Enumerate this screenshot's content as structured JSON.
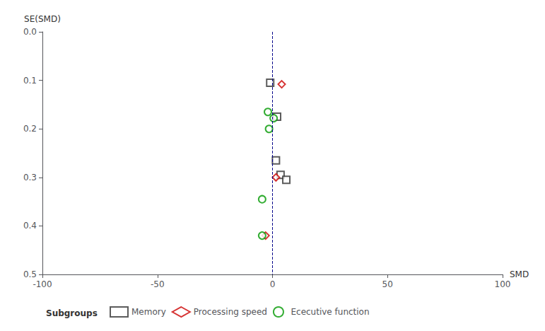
{
  "chart_data": {
    "type": "scatter",
    "xlabel": "SMD",
    "ylabel": "SE(SMD)",
    "xlim": [
      -100,
      100
    ],
    "ylim": [
      0.5,
      0
    ],
    "xticks": [
      -100,
      -50,
      0,
      50,
      100
    ],
    "yticks": [
      {
        "value": 0,
        "label": "0.0"
      },
      0.1,
      0.2,
      0.3,
      0.4,
      0.5
    ],
    "grid": false,
    "legend": "bottom",
    "legend_title": "Subgroups",
    "reference_lines": [
      {
        "x": 0,
        "color": "#00008b",
        "line_style": "dashed"
      }
    ],
    "series": [
      {
        "name": "Memory",
        "color": "#333333",
        "marker": "square",
        "x": [
          -1.0,
          2.0,
          1.5,
          3.5,
          6.0
        ],
        "values": [
          0.105,
          0.175,
          0.265,
          0.295,
          0.305
        ]
      },
      {
        "name": "Processing speed",
        "color": "#cc0000",
        "marker": "diamond",
        "x": [
          4.0,
          1.5,
          -3.0
        ],
        "values": [
          0.108,
          0.3,
          0.42
        ]
      },
      {
        "name": "Ececutive function",
        "color": "#009900",
        "marker": "circle",
        "x": [
          -2.0,
          0.5,
          -1.5,
          -4.5,
          -4.5
        ],
        "values": [
          0.165,
          0.178,
          0.2,
          0.345,
          0.42
        ]
      }
    ]
  }
}
